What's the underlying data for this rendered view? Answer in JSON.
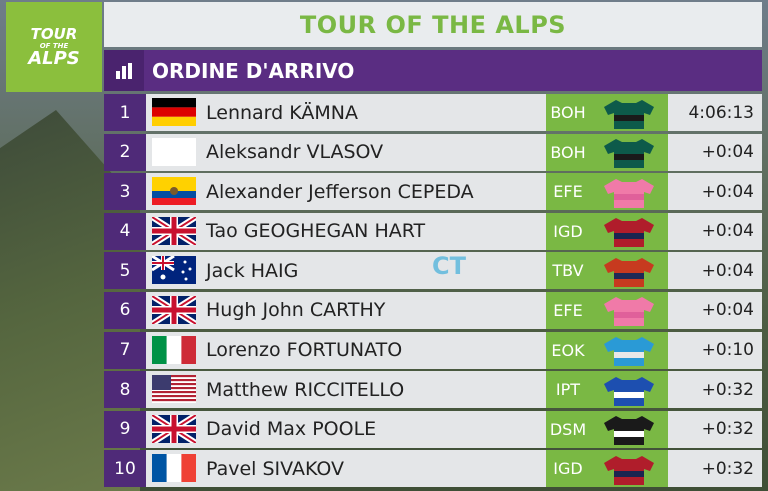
{
  "logo": {
    "line1": "TOUR",
    "line2": "OF THE",
    "line3": "ALPS"
  },
  "title": "TOUR OF THE ALPS",
  "header": {
    "label": "ORDINE D'ARRIVO",
    "icon": "bar-chart-icon"
  },
  "watermark": "CT",
  "colors": {
    "green": "#7ab844",
    "purple": "#5a2d82"
  },
  "rows": [
    {
      "pos": "1",
      "flag": "germany",
      "name": "Lennard KÄMNA",
      "team": "BOH",
      "jersey": "bora-jersey",
      "time": "4:06:13"
    },
    {
      "pos": "2",
      "flag": "neutral",
      "name": "Aleksandr VLASOV",
      "team": "BOH",
      "jersey": "bora-jersey",
      "time": "+0:04"
    },
    {
      "pos": "3",
      "flag": "ecuador",
      "name": "Alexander Jefferson CEPEDA",
      "team": "EFE",
      "jersey": "ef-jersey",
      "time": "+0:04"
    },
    {
      "pos": "4",
      "flag": "uk",
      "name": "Tao GEOGHEGAN HART",
      "team": "IGD",
      "jersey": "ineos-jersey",
      "time": "+0:04"
    },
    {
      "pos": "5",
      "flag": "australia",
      "name": "Jack HAIG",
      "team": "TBV",
      "jersey": "bahrain-jersey",
      "time": "+0:04"
    },
    {
      "pos": "6",
      "flag": "uk",
      "name": "Hugh John CARTHY",
      "team": "EFE",
      "jersey": "ef-jersey",
      "time": "+0:04"
    },
    {
      "pos": "7",
      "flag": "italy",
      "name": "Lorenzo FORTUNATO",
      "team": "EOK",
      "jersey": "eolo-jersey",
      "time": "+0:10"
    },
    {
      "pos": "8",
      "flag": "usa",
      "name": "Matthew RICCITELLO",
      "team": "IPT",
      "jersey": "israel-jersey",
      "time": "+0:32"
    },
    {
      "pos": "9",
      "flag": "uk",
      "name": "David Max POOLE",
      "team": "DSM",
      "jersey": "dsm-jersey",
      "time": "+0:32"
    },
    {
      "pos": "10",
      "flag": "france",
      "name": "Pavel SIVAKOV",
      "team": "IGD",
      "jersey": "ineos-jersey",
      "time": "+0:32"
    }
  ]
}
